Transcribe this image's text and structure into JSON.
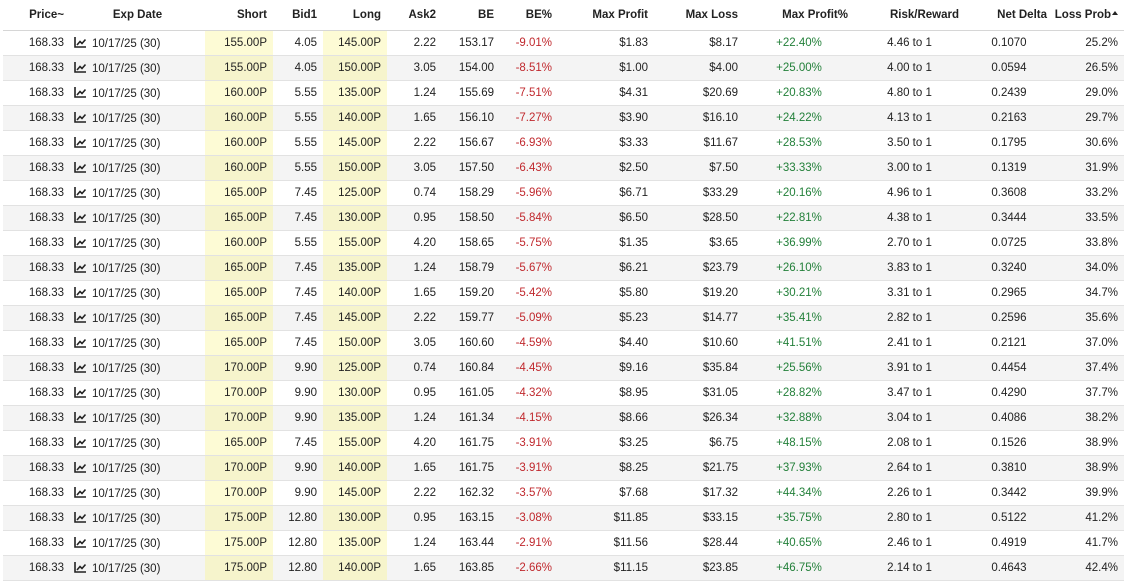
{
  "table": {
    "headers": {
      "price": "Price",
      "price_suffix": "~",
      "exp_date": "Exp Date",
      "short": "Short",
      "bid1": "Bid1",
      "long": "Long",
      "ask2": "Ask2",
      "be": "BE",
      "be_pct": "BE%",
      "max_profit": "Max Profit",
      "max_loss": "Max Loss",
      "max_profit_pct": "Max Profit%",
      "risk_reward": "Risk/Reward",
      "net_delta": "Net Delta",
      "loss_prob": "Loss Prob"
    },
    "sort_icon": "sort-ascending-triangle",
    "row_icon": "chart-line-icon",
    "colors": {
      "negative": "#c0282d",
      "positive": "#23803a",
      "highlight": "#fdfbd5"
    },
    "rows": [
      {
        "price": "168.33",
        "exp": "10/17/25 (30)",
        "short": "155.00P",
        "bid1": "4.05",
        "long": "145.00P",
        "ask2": "2.22",
        "be": "153.17",
        "be_pct": "-9.01%",
        "max_profit": "$1.83",
        "max_loss": "$8.17",
        "max_profit_pct": "+22.40%",
        "rr": "4.46 to 1",
        "delta": "0.1070",
        "loss_prob": "25.2%"
      },
      {
        "price": "168.33",
        "exp": "10/17/25 (30)",
        "short": "155.00P",
        "bid1": "4.05",
        "long": "150.00P",
        "ask2": "3.05",
        "be": "154.00",
        "be_pct": "-8.51%",
        "max_profit": "$1.00",
        "max_loss": "$4.00",
        "max_profit_pct": "+25.00%",
        "rr": "4.00 to 1",
        "delta": "0.0594",
        "loss_prob": "26.5%"
      },
      {
        "price": "168.33",
        "exp": "10/17/25 (30)",
        "short": "160.00P",
        "bid1": "5.55",
        "long": "135.00P",
        "ask2": "1.24",
        "be": "155.69",
        "be_pct": "-7.51%",
        "max_profit": "$4.31",
        "max_loss": "$20.69",
        "max_profit_pct": "+20.83%",
        "rr": "4.80 to 1",
        "delta": "0.2439",
        "loss_prob": "29.0%"
      },
      {
        "price": "168.33",
        "exp": "10/17/25 (30)",
        "short": "160.00P",
        "bid1": "5.55",
        "long": "140.00P",
        "ask2": "1.65",
        "be": "156.10",
        "be_pct": "-7.27%",
        "max_profit": "$3.90",
        "max_loss": "$16.10",
        "max_profit_pct": "+24.22%",
        "rr": "4.13 to 1",
        "delta": "0.2163",
        "loss_prob": "29.7%"
      },
      {
        "price": "168.33",
        "exp": "10/17/25 (30)",
        "short": "160.00P",
        "bid1": "5.55",
        "long": "145.00P",
        "ask2": "2.22",
        "be": "156.67",
        "be_pct": "-6.93%",
        "max_profit": "$3.33",
        "max_loss": "$11.67",
        "max_profit_pct": "+28.53%",
        "rr": "3.50 to 1",
        "delta": "0.1795",
        "loss_prob": "30.6%"
      },
      {
        "price": "168.33",
        "exp": "10/17/25 (30)",
        "short": "160.00P",
        "bid1": "5.55",
        "long": "150.00P",
        "ask2": "3.05",
        "be": "157.50",
        "be_pct": "-6.43%",
        "max_profit": "$2.50",
        "max_loss": "$7.50",
        "max_profit_pct": "+33.33%",
        "rr": "3.00 to 1",
        "delta": "0.1319",
        "loss_prob": "31.9%"
      },
      {
        "price": "168.33",
        "exp": "10/17/25 (30)",
        "short": "165.00P",
        "bid1": "7.45",
        "long": "125.00P",
        "ask2": "0.74",
        "be": "158.29",
        "be_pct": "-5.96%",
        "max_profit": "$6.71",
        "max_loss": "$33.29",
        "max_profit_pct": "+20.16%",
        "rr": "4.96 to 1",
        "delta": "0.3608",
        "loss_prob": "33.2%"
      },
      {
        "price": "168.33",
        "exp": "10/17/25 (30)",
        "short": "165.00P",
        "bid1": "7.45",
        "long": "130.00P",
        "ask2": "0.95",
        "be": "158.50",
        "be_pct": "-5.84%",
        "max_profit": "$6.50",
        "max_loss": "$28.50",
        "max_profit_pct": "+22.81%",
        "rr": "4.38 to 1",
        "delta": "0.3444",
        "loss_prob": "33.5%"
      },
      {
        "price": "168.33",
        "exp": "10/17/25 (30)",
        "short": "160.00P",
        "bid1": "5.55",
        "long": "155.00P",
        "ask2": "4.20",
        "be": "158.65",
        "be_pct": "-5.75%",
        "max_profit": "$1.35",
        "max_loss": "$3.65",
        "max_profit_pct": "+36.99%",
        "rr": "2.70 to 1",
        "delta": "0.0725",
        "loss_prob": "33.8%"
      },
      {
        "price": "168.33",
        "exp": "10/17/25 (30)",
        "short": "165.00P",
        "bid1": "7.45",
        "long": "135.00P",
        "ask2": "1.24",
        "be": "158.79",
        "be_pct": "-5.67%",
        "max_profit": "$6.21",
        "max_loss": "$23.79",
        "max_profit_pct": "+26.10%",
        "rr": "3.83 to 1",
        "delta": "0.3240",
        "loss_prob": "34.0%"
      },
      {
        "price": "168.33",
        "exp": "10/17/25 (30)",
        "short": "165.00P",
        "bid1": "7.45",
        "long": "140.00P",
        "ask2": "1.65",
        "be": "159.20",
        "be_pct": "-5.42%",
        "max_profit": "$5.80",
        "max_loss": "$19.20",
        "max_profit_pct": "+30.21%",
        "rr": "3.31 to 1",
        "delta": "0.2965",
        "loss_prob": "34.7%"
      },
      {
        "price": "168.33",
        "exp": "10/17/25 (30)",
        "short": "165.00P",
        "bid1": "7.45",
        "long": "145.00P",
        "ask2": "2.22",
        "be": "159.77",
        "be_pct": "-5.09%",
        "max_profit": "$5.23",
        "max_loss": "$14.77",
        "max_profit_pct": "+35.41%",
        "rr": "2.82 to 1",
        "delta": "0.2596",
        "loss_prob": "35.6%"
      },
      {
        "price": "168.33",
        "exp": "10/17/25 (30)",
        "short": "165.00P",
        "bid1": "7.45",
        "long": "150.00P",
        "ask2": "3.05",
        "be": "160.60",
        "be_pct": "-4.59%",
        "max_profit": "$4.40",
        "max_loss": "$10.60",
        "max_profit_pct": "+41.51%",
        "rr": "2.41 to 1",
        "delta": "0.2121",
        "loss_prob": "37.0%"
      },
      {
        "price": "168.33",
        "exp": "10/17/25 (30)",
        "short": "170.00P",
        "bid1": "9.90",
        "long": "125.00P",
        "ask2": "0.74",
        "be": "160.84",
        "be_pct": "-4.45%",
        "max_profit": "$9.16",
        "max_loss": "$35.84",
        "max_profit_pct": "+25.56%",
        "rr": "3.91 to 1",
        "delta": "0.4454",
        "loss_prob": "37.4%"
      },
      {
        "price": "168.33",
        "exp": "10/17/25 (30)",
        "short": "170.00P",
        "bid1": "9.90",
        "long": "130.00P",
        "ask2": "0.95",
        "be": "161.05",
        "be_pct": "-4.32%",
        "max_profit": "$8.95",
        "max_loss": "$31.05",
        "max_profit_pct": "+28.82%",
        "rr": "3.47 to 1",
        "delta": "0.4290",
        "loss_prob": "37.7%"
      },
      {
        "price": "168.33",
        "exp": "10/17/25 (30)",
        "short": "170.00P",
        "bid1": "9.90",
        "long": "135.00P",
        "ask2": "1.24",
        "be": "161.34",
        "be_pct": "-4.15%",
        "max_profit": "$8.66",
        "max_loss": "$26.34",
        "max_profit_pct": "+32.88%",
        "rr": "3.04 to 1",
        "delta": "0.4086",
        "loss_prob": "38.2%"
      },
      {
        "price": "168.33",
        "exp": "10/17/25 (30)",
        "short": "165.00P",
        "bid1": "7.45",
        "long": "155.00P",
        "ask2": "4.20",
        "be": "161.75",
        "be_pct": "-3.91%",
        "max_profit": "$3.25",
        "max_loss": "$6.75",
        "max_profit_pct": "+48.15%",
        "rr": "2.08 to 1",
        "delta": "0.1526",
        "loss_prob": "38.9%"
      },
      {
        "price": "168.33",
        "exp": "10/17/25 (30)",
        "short": "170.00P",
        "bid1": "9.90",
        "long": "140.00P",
        "ask2": "1.65",
        "be": "161.75",
        "be_pct": "-3.91%",
        "max_profit": "$8.25",
        "max_loss": "$21.75",
        "max_profit_pct": "+37.93%",
        "rr": "2.64 to 1",
        "delta": "0.3810",
        "loss_prob": "38.9%"
      },
      {
        "price": "168.33",
        "exp": "10/17/25 (30)",
        "short": "170.00P",
        "bid1": "9.90",
        "long": "145.00P",
        "ask2": "2.22",
        "be": "162.32",
        "be_pct": "-3.57%",
        "max_profit": "$7.68",
        "max_loss": "$17.32",
        "max_profit_pct": "+44.34%",
        "rr": "2.26 to 1",
        "delta": "0.3442",
        "loss_prob": "39.9%"
      },
      {
        "price": "168.33",
        "exp": "10/17/25 (30)",
        "short": "175.00P",
        "bid1": "12.80",
        "long": "130.00P",
        "ask2": "0.95",
        "be": "163.15",
        "be_pct": "-3.08%",
        "max_profit": "$11.85",
        "max_loss": "$33.15",
        "max_profit_pct": "+35.75%",
        "rr": "2.80 to 1",
        "delta": "0.5122",
        "loss_prob": "41.2%"
      },
      {
        "price": "168.33",
        "exp": "10/17/25 (30)",
        "short": "175.00P",
        "bid1": "12.80",
        "long": "135.00P",
        "ask2": "1.24",
        "be": "163.44",
        "be_pct": "-2.91%",
        "max_profit": "$11.56",
        "max_loss": "$28.44",
        "max_profit_pct": "+40.65%",
        "rr": "2.46 to 1",
        "delta": "0.4919",
        "loss_prob": "41.7%"
      },
      {
        "price": "168.33",
        "exp": "10/17/25 (30)",
        "short": "175.00P",
        "bid1": "12.80",
        "long": "140.00P",
        "ask2": "1.65",
        "be": "163.85",
        "be_pct": "-2.66%",
        "max_profit": "$11.15",
        "max_loss": "$23.85",
        "max_profit_pct": "+46.75%",
        "rr": "2.14 to 1",
        "delta": "0.4643",
        "loss_prob": "42.4%"
      }
    ]
  }
}
